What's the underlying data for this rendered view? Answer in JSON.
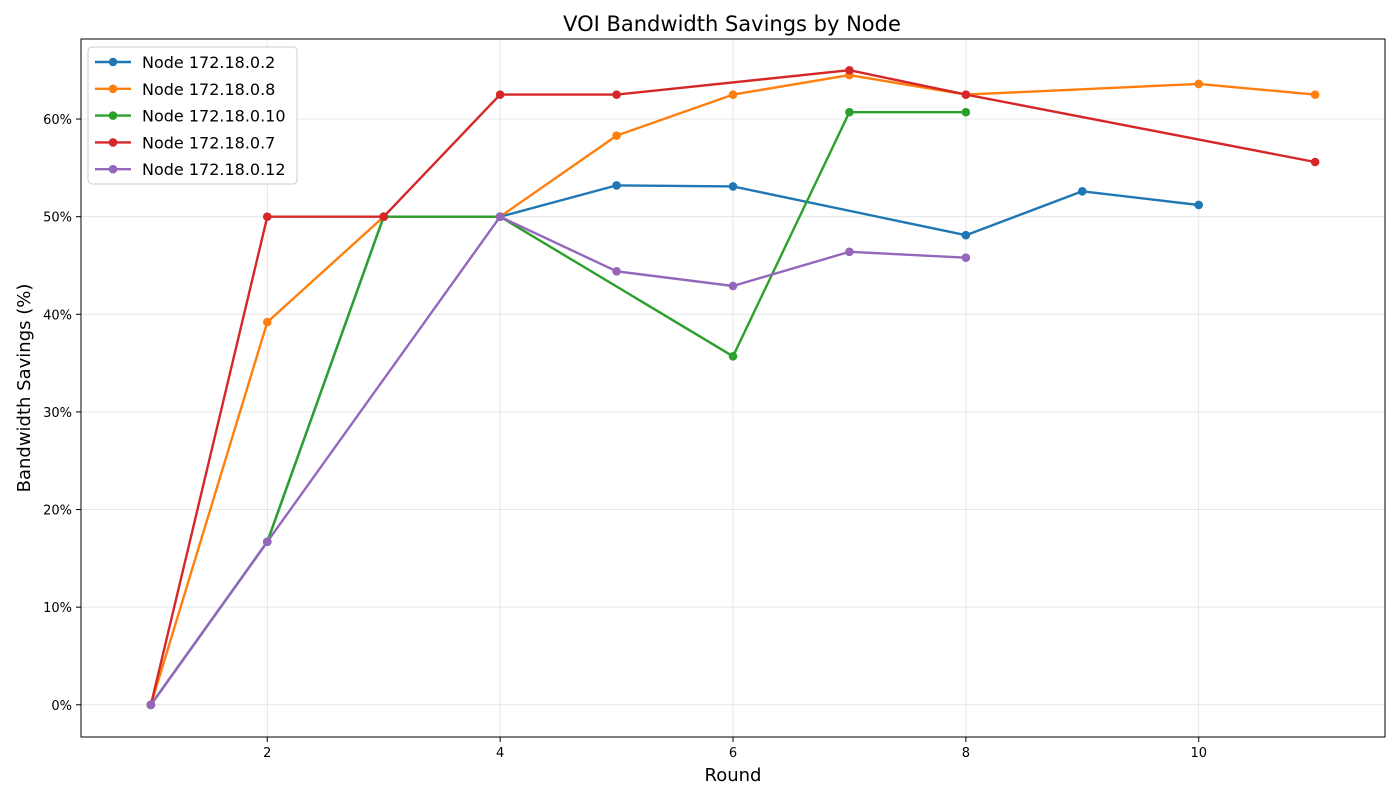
{
  "chart_data": {
    "type": "line",
    "title": "VOI Bandwidth Savings by Node",
    "xlabel": "Round",
    "ylabel": "Bandwidth Savings (%)",
    "xlim": [
      0.4,
      11.6
    ],
    "ylim": [
      -3.3,
      68.2
    ],
    "xticks": [
      2,
      4,
      6,
      8,
      10
    ],
    "yticks": [
      0,
      10,
      20,
      30,
      40,
      50,
      60
    ],
    "ytick_suffix": "%",
    "grid": true,
    "legend_position": "top-left",
    "series": [
      {
        "name": "Node 172.18.0.2",
        "color": "#1f77b4",
        "x": [
          1,
          2,
          3,
          4,
          5,
          6,
          8,
          9,
          10
        ],
        "y": [
          0,
          16.7,
          50.0,
          50.0,
          53.2,
          53.1,
          48.1,
          52.6,
          51.2
        ]
      },
      {
        "name": "Node 172.18.0.8",
        "color": "#ff7f0e",
        "x": [
          1,
          2,
          3,
          4,
          5,
          6,
          7,
          8,
          10,
          11
        ],
        "y": [
          0,
          39.2,
          50.0,
          50.0,
          58.3,
          62.5,
          64.5,
          62.5,
          63.6,
          62.5
        ]
      },
      {
        "name": "Node 172.18.0.10",
        "color": "#2ca02c",
        "x": [
          1,
          2,
          3,
          4,
          6,
          7,
          8
        ],
        "y": [
          0,
          16.7,
          50.0,
          50.0,
          35.7,
          60.7,
          60.7
        ]
      },
      {
        "name": "Node 172.18.0.7",
        "color": "#d62728",
        "x": [
          1,
          2,
          3,
          4,
          5,
          7,
          8,
          11
        ],
        "y": [
          0,
          50.0,
          50.0,
          62.5,
          62.5,
          65.0,
          62.5,
          55.6
        ]
      },
      {
        "name": "Node 172.18.0.12",
        "color": "#9467bd",
        "x": [
          1,
          2,
          4,
          5,
          6,
          7,
          8
        ],
        "y": [
          0,
          16.7,
          50.0,
          44.4,
          42.9,
          46.4,
          45.8
        ]
      }
    ]
  }
}
